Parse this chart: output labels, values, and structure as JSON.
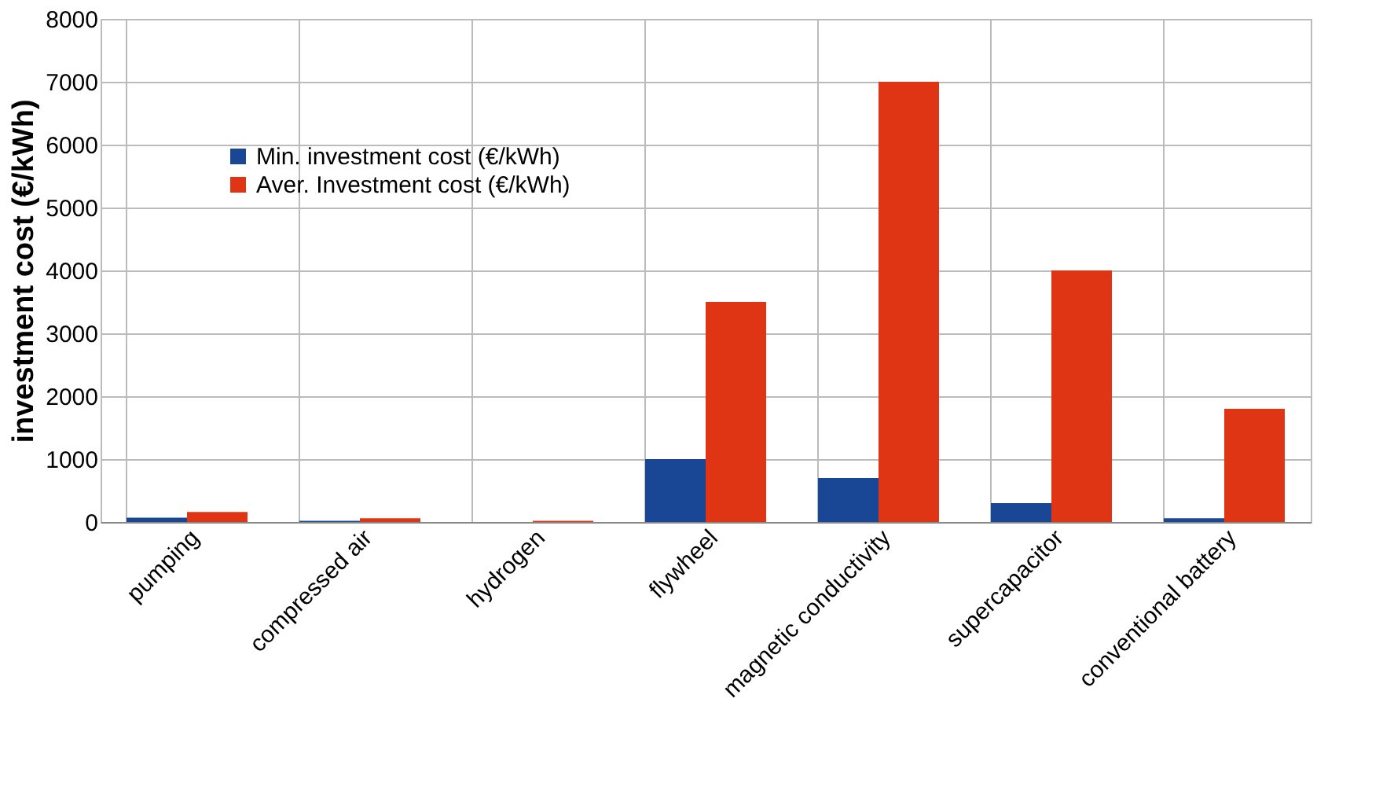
{
  "chart_data": {
    "type": "bar",
    "ylabel": "investment cost (€/kWh)",
    "categories": [
      "pumping",
      "compressed air",
      "hydrogen",
      "flywheel",
      "magnetic conductivity",
      "supercapacitor",
      "conventional battery"
    ],
    "series": [
      {
        "name": "Min. investment cost (€/kWh)",
        "color": "#1a4696",
        "values": [
          70,
          20,
          0,
          1000,
          700,
          300,
          60
        ]
      },
      {
        "name": "Aver. Investment cost (€/kWh)",
        "color": "#e03514",
        "values": [
          160,
          60,
          20,
          3500,
          7000,
          4000,
          1800
        ]
      }
    ],
    "ylim": [
      0,
      8000
    ],
    "yticks": [
      0,
      1000,
      2000,
      3000,
      4000,
      5000,
      6000,
      7000,
      8000
    ],
    "grid": true,
    "legend": "top left"
  }
}
